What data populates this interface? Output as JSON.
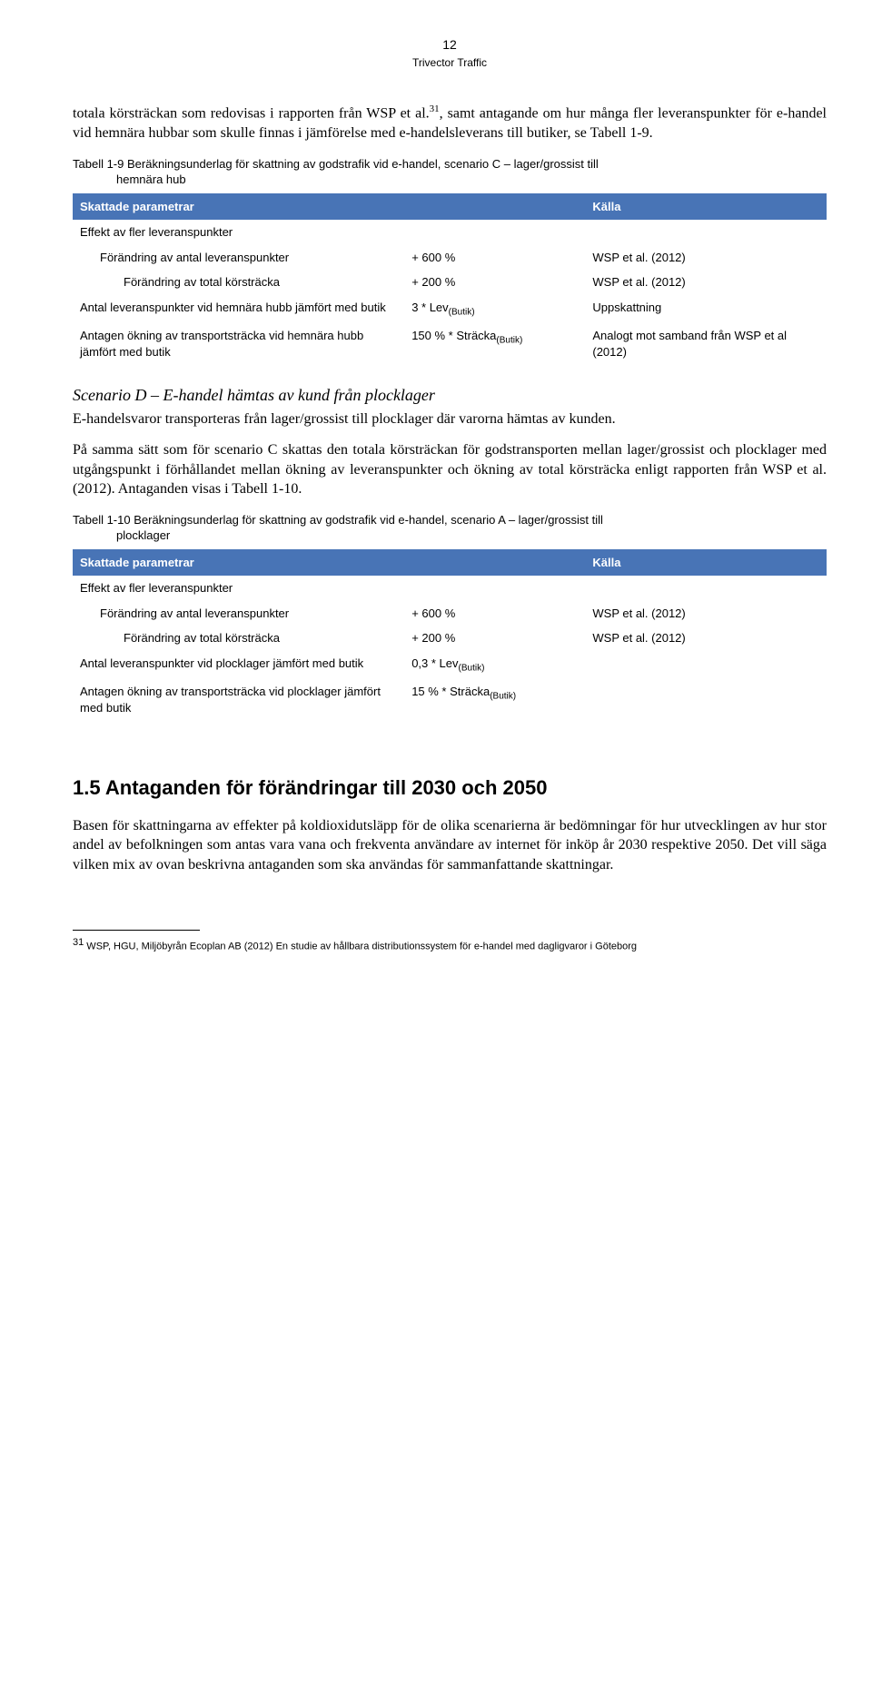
{
  "page": {
    "number": "12",
    "subtitle": "Trivector Traffic"
  },
  "intro": {
    "text_pre": "totala körsträckan som redovisas i rapporten från WSP et al.",
    "sup": "31",
    "text_post": ", samt antagande om hur många fler leveranspunkter för e-handel vid hemnära hubbar som skulle finnas i jämförelse med e-handelsleverans till butiker, se Tabell 1-9."
  },
  "table1": {
    "caption_line1": "Tabell 1-9 Beräkningsunderlag för skattning av godstrafik vid e-handel, scenario C – lager/grossist till",
    "caption_line2": "hemnära hub",
    "header": {
      "col1": "Skattade parametrar",
      "col2": "",
      "col3": "Källa"
    },
    "rows": [
      {
        "c1": "Effekt av fler leveranspunkter",
        "c2": "",
        "c3": "",
        "cls": ""
      },
      {
        "c1": "Förändring av antal leveranspunkter",
        "c2": "+ 600 %",
        "c3": "WSP et al. (2012)",
        "cls": "indent1"
      },
      {
        "c1": "Förändring av total körsträcka",
        "c2": "+ 200 %",
        "c3": "WSP et al. (2012)",
        "cls": "indent2"
      },
      {
        "c1": "Antal leveranspunkter vid hemnära hubb jämfört med butik",
        "c2_pre": "3 * Lev",
        "c2_sub": "(Butik)",
        "c3": "Uppskattning",
        "cls": ""
      },
      {
        "c1": "Antagen ökning av transportsträcka vid hemnära hubb jämfört med butik",
        "c2_pre": "150 % * Sträcka",
        "c2_sub": "(Butik)",
        "c3": "Analogt mot samband från WSP et al (2012)",
        "cls": ""
      }
    ]
  },
  "scenarioD": {
    "heading": "Scenario D – E-handel hämtas av kund från plocklager",
    "p1": "E-handelsvaror transporteras från lager/grossist till plocklager där varorna hämtas av kunden.",
    "p2": "På samma sätt som för scenario C skattas den totala körsträckan för godstransporten mellan lager/grossist och plocklager med utgångspunkt i förhållandet mellan ökning av leveranspunkter och ökning av total körsträcka enligt rapporten från WSP et al.(2012). Antaganden visas i Tabell 1-10."
  },
  "table2": {
    "caption_line1": "Tabell 1-10 Beräkningsunderlag för skattning av godstrafik vid e-handel, scenario A – lager/grossist till",
    "caption_line2": "plocklager",
    "header": {
      "col1": "Skattade parametrar",
      "col2": "",
      "col3": "Källa"
    },
    "rows": [
      {
        "c1": "Effekt av fler leveranspunkter",
        "c2": "",
        "c3": "",
        "cls": ""
      },
      {
        "c1": "Förändring av antal leveranspunkter",
        "c2": "+ 600 %",
        "c3": "WSP et al. (2012)",
        "cls": "indent1"
      },
      {
        "c1": "Förändring av total körsträcka",
        "c2": "+ 200 %",
        "c3": "WSP et al. (2012)",
        "cls": "indent2"
      },
      {
        "c1": "Antal leveranspunkter vid plocklager jämfört med butik",
        "c2_pre": "0,3 * Lev",
        "c2_sub": "(Butik)",
        "c3": "",
        "cls": ""
      },
      {
        "c1": "Antagen ökning av transportsträcka vid plocklager jämfört med butik",
        "c2_pre": "15 % * Sträcka",
        "c2_sub": "(Butik)",
        "c3": "",
        "cls": ""
      }
    ]
  },
  "section15": {
    "heading": "1.5  Antaganden för förändringar till 2030 och 2050",
    "p1": "Basen för skattningarna av effekter på koldioxidutsläpp för de olika scenarierna är bedömningar för hur utvecklingen av hur stor andel av befolkningen som antas vara vana och frekventa användare av internet för inköp år 2030 respektive 2050. Det vill säga vilken mix av ovan beskrivna antaganden som ska användas för sammanfattande skattningar."
  },
  "footnote": {
    "marker": "31",
    "text": " WSP, HGU, Miljöbyrån Ecoplan AB (2012) En studie av hållbara distributionssystem för e-handel med dagligvaror i Göteborg"
  }
}
